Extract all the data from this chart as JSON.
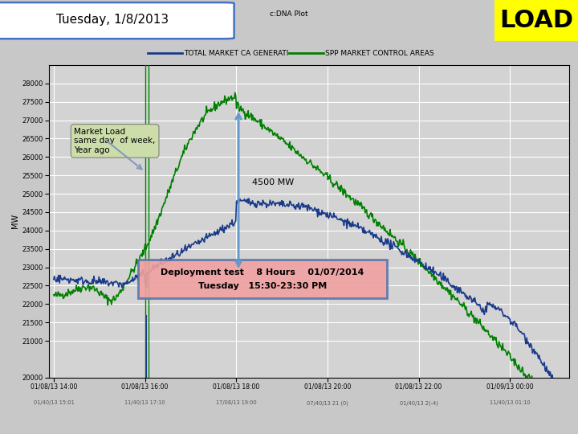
{
  "title_date": "Tuesday, 1/8/2013",
  "subtitle": "c:DNA Plot",
  "load_label": "LOAD",
  "legend_blue": "TOTAL MARKET CA GENERATI",
  "legend_green": "SPP MARKET CONTROL AREAS",
  "ylabel": "MW",
  "ylim_min": 20000,
  "ylim_max": 28500,
  "yticks": [
    20000,
    21000,
    21500,
    22000,
    22500,
    23000,
    23500,
    24000,
    24500,
    25000,
    25500,
    26000,
    26500,
    27000,
    27500,
    28000
  ],
  "annotation_box_text1": "Deployment test    8 Hours    01/07/2014",
  "annotation_box_text2": "Tuesday   15:30-23:30 PM",
  "annotation_left": "Market Load\nsame day  of week,\nYear ago",
  "annotation_mw": "4500 MW",
  "bg_color": "#d3d3d3",
  "fig_bg": "#c8c8c8",
  "blue_color": "#1a3a8a",
  "green_color": "#008000",
  "yellow_bg": "#FFFF00",
  "box_border": "#4472C4",
  "arrow_color": "#6699cc",
  "deploy_box_bg": "#f0a0a0",
  "deploy_box_border": "#5577aa",
  "market_load_bg": "#ccddaa",
  "xtick_labels_top": [
    "01/08/13 14:00",
    "01/08/13 16:00",
    "01/08/13 18:00",
    "01/08/13 20:00",
    "01/08/13 22:00",
    "01/09/13 00:00"
  ],
  "xtick_labels_bot": [
    "01/40/13 15:01",
    "11/40/13 17:10",
    "17/08/13 19:00",
    "07/40/13 21 (0)",
    "01/40/13 2(-4)",
    "11/40/13 01:10"
  ]
}
